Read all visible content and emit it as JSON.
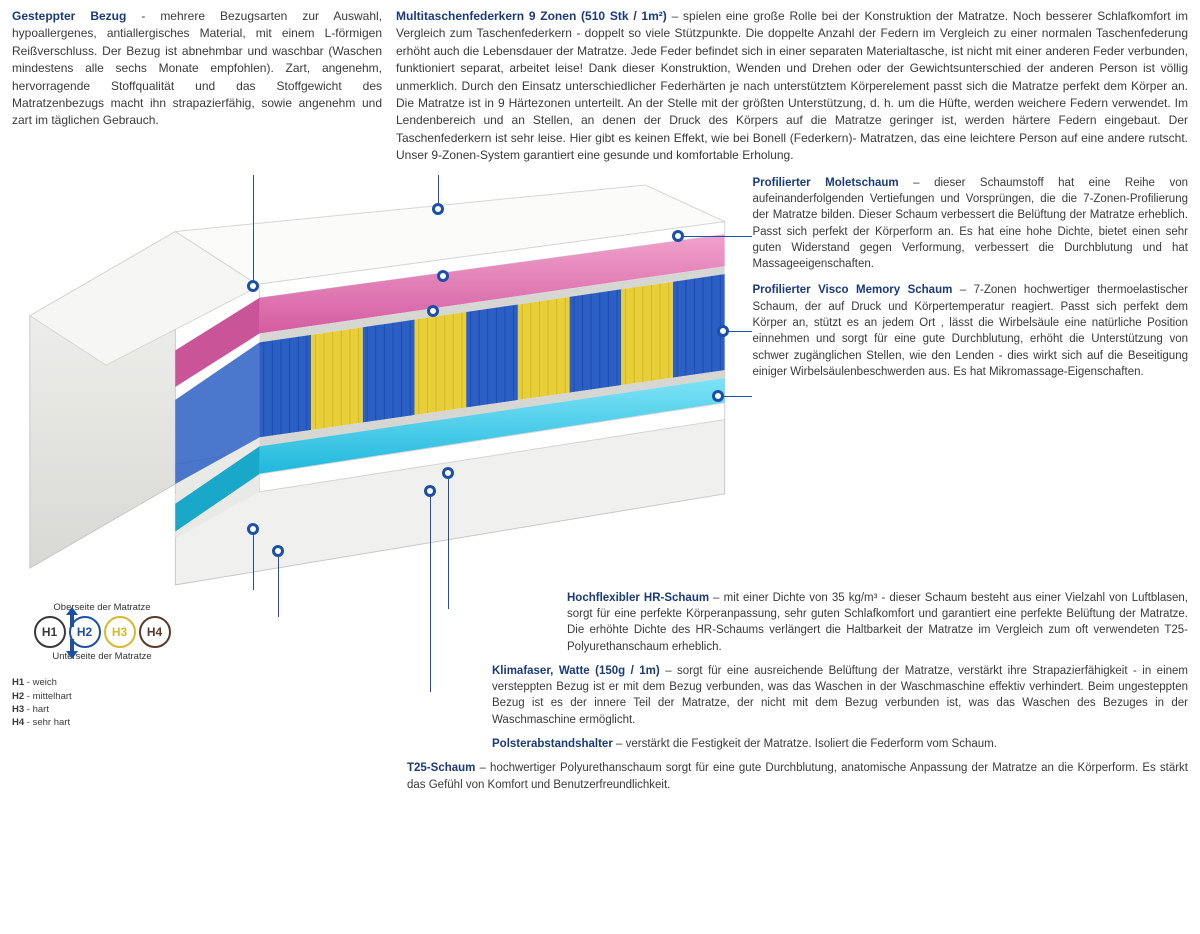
{
  "colors": {
    "title": "#1a3a7a",
    "text": "#3a3a3a",
    "h1_border": "#3a3a3a",
    "h2_border": "#1b4fa8",
    "h3_border": "#d9b82a",
    "h4_border": "#5a3a2a",
    "spring_blue": "#2b5fc4",
    "spring_yellow": "#e8cf3a",
    "foam_pink": "#e176b0",
    "foam_cyan": "#3fc8e8",
    "cover_grey": "#e8e8e6"
  },
  "top": {
    "left": {
      "title": "Gesteppter Bezug",
      "sep": " - ",
      "body": "mehrere Bezugsarten zur Auswahl, hypoallergenes, antiallergisches Material, mit einem L-förmigen Reißverschluss. Der Bezug ist abnehmbar  und waschbar (Waschen mindestens alle sechs Monate empfohlen). Zart, angenehm, hervorragende Stoffqualität und das Stoffgewicht des Matratzenbezugs macht ihn strapazierfähig, sowie angenehm und zart im täglichen Gebrauch."
    },
    "right": {
      "title": "Multitaschenfederkern 9 Zonen (510 Stk / 1m²)",
      "sep": " –  ",
      "body": "spielen eine große Rolle bei der Konstruktion der Matratze. Noch besserer Schlafkomfort im Vergleich zum Taschenfederkern - doppelt so viele Stützpunkte. Die doppelte Anzahl der Federn im Vergleich zu einer normalen Taschenfederung erhöht auch die Lebensdauer der Matratze. Jede Feder befindet sich in einer separaten Materialtasche, ist nicht mit einer anderen Feder verbunden, funktioniert separat, arbeitet leise! Dank dieser Konstruktion, Wenden und Drehen oder der Gewichtsunterschied der anderen Person ist völlig unmerklich. Durch den Einsatz unterschiedlicher Federhärten je nach unterstütztem Körperelement passt sich die Matratze perfekt dem Körper an. Die Matratze ist in 9 Härtezonen unterteilt. An der Stelle mit der größten Unterstützung, d. h. um die Hüfte, werden weichere Federn verwendet. Im Lendenbereich und an Stellen, an denen der Druck des Körpers auf die Matratze geringer ist, werden härtere Federn eingebaut. Der Taschenfederkern ist sehr leise. Hier gibt es keinen Effekt, wie bei Bonell (Federkern)- Matratzen, das eine leichtere Person auf eine andere rutscht. Unser 9-Zonen-System garantiert eine gesunde und komfortable Erholung."
    }
  },
  "right_sections": [
    {
      "title": "Profilierter Moletschaum",
      "sep": " –  ",
      "body": "dieser Schaumstoff hat eine Reihe von aufeinanderfolgenden Vertiefungen und Vorsprüngen, die die 7-Zonen-Profilierung der Matratze bilden. Dieser Schaum verbessert die Belüftung der Matratze erheblich. Passt sich perfekt der Körperform an. Es hat eine hohe Dichte, bietet einen sehr guten Widerstand gegen Verformung, verbessert die Durchblutung und hat Massageeigenschaften."
    },
    {
      "title": "Profilierter Visco Memory Schaum",
      "sep": " –   ",
      "body": "7-Zonen hochwertiger thermoelastischer Schaum, der auf Druck und Körpertemperatur reagiert. Passt sich perfekt dem Körper an, stützt es an jedem Ort , lässt die Wirbelsäule eine natürliche Position einnehmen und sorgt für eine gute Durchblutung, erhöht die Unterstützung von schwer zugänglichen Stellen, wie den Lenden - dies wirkt sich auf die Beseitigung einiger Wirbelsäulenbeschwerden aus. Es hat Mikromassage-Eigenschaften."
    }
  ],
  "below_sections": [
    {
      "cls": "section-4",
      "title": "Hochflexibler HR-Schaum",
      "sep": " –  ",
      "body": "mit einer Dichte von 35 kg/m³ - dieser Schaum besteht aus einer Vielzahl von Luftblasen, sorgt für eine perfekte Körperanpassung, sehr guten Schlafkomfort und garantiert eine perfekte Belüftung der Matratze. Die erhöhte Dichte des HR-Schaums verlängert die Haltbarkeit der Matratze im Vergleich zum oft verwendeten T25-Polyurethanschaum erheblich."
    },
    {
      "cls": "section-5",
      "title": "Klimafaser, Watte (150g / 1m)",
      "sep": " –  ",
      "body": "sorgt für eine ausreichende Belüftung der Matratze, verstärkt ihre Strapazierfähigkeit - in einem versteppten Bezug ist er mit dem Bezug verbunden, was das Waschen in der Waschmaschine effektiv verhindert. Beim ungesteppten Bezug ist es der innere Teil der Matratze, der nicht mit dem Bezug verbunden ist, was das Waschen des Bezuges in der Waschmaschine ermöglicht."
    },
    {
      "cls": "section-7",
      "title": "Polsterabstandshalter",
      "sep": " – ",
      "body": "verstärkt die Festigkeit der Matratze. Isoliert die Federform vom Schaum."
    },
    {
      "cls": "section-8",
      "title": "T25-Schaum",
      "sep": " – ",
      "body": "hochwertiger Polyurethanschaum sorgt für eine gute Durchblutung, anatomische Anpassung der Matratze an die Körperform. Es stärkt das Gefühl von Komfort und Benutzerfreundlichkeit."
    }
  ],
  "legend": {
    "top_label": "Oberseite der Matratze",
    "bot_label": "Unterseite der Matratze",
    "circles": [
      {
        "label": "H1",
        "color": "#3a3a3a"
      },
      {
        "label": "H2",
        "color": "#1b4fa8"
      },
      {
        "label": "H3",
        "color": "#d9b82a"
      },
      {
        "label": "H4",
        "color": "#5a3a2a"
      }
    ],
    "list": [
      {
        "k": "H1",
        "v": " - weich"
      },
      {
        "k": "H2",
        "v": " - mittelhart"
      },
      {
        "k": "H3",
        "v": " - hart"
      },
      {
        "k": "H4",
        "v": " - sehr hart"
      }
    ]
  },
  "diagram": {
    "spring_zones": [
      "blue",
      "yellow",
      "blue",
      "yellow",
      "blue",
      "yellow",
      "blue",
      "yellow",
      "blue"
    ]
  }
}
